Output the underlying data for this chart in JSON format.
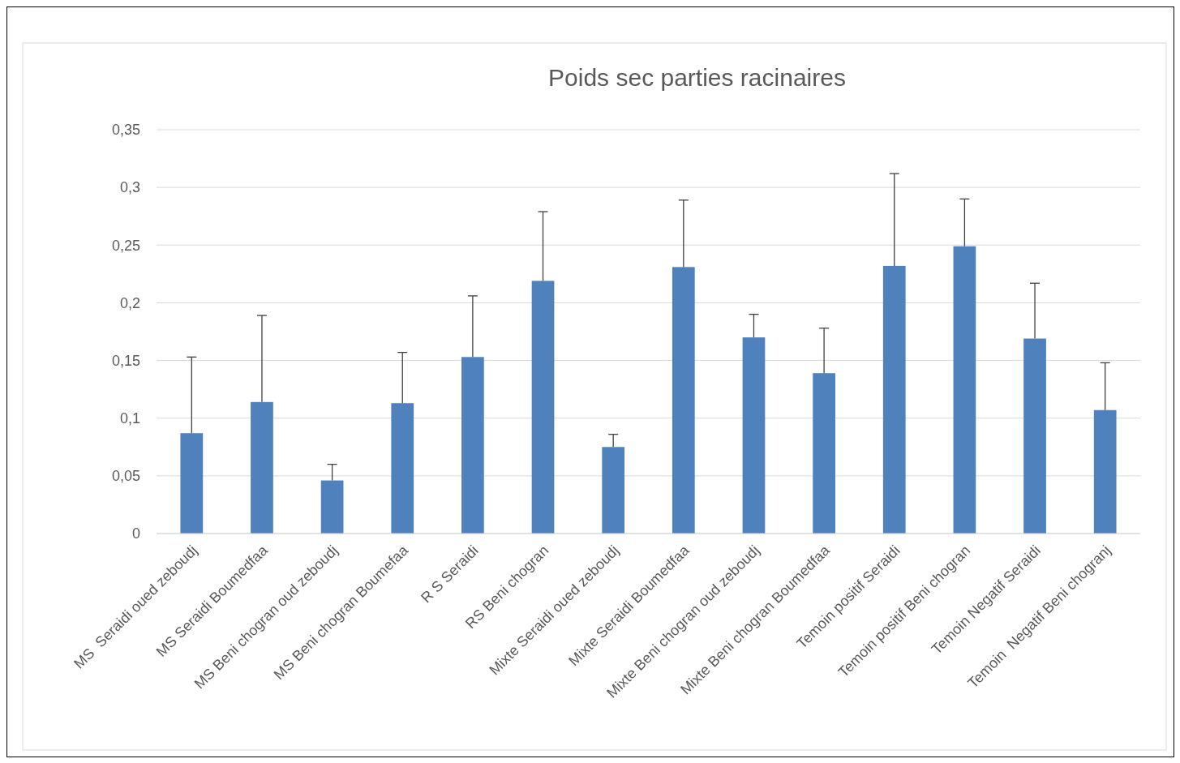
{
  "chart_data": {
    "type": "bar",
    "title": "Poids sec parties racinaires",
    "categories": [
      "MS  Seraidi oued zeboudj",
      "MS Seraidi Boumedfaa",
      "MS Beni chogran oud zeboudj",
      "MS Beni chogran Boumefaa",
      "R S Seraidi",
      "RS Beni chogran",
      "Mixte Seraidi oued zeboudj",
      "Mixte Seraidi Boumedfaa",
      "Mixte Beni chogran oud zeboudj",
      "Mixte Beni chogran Boumedfaa",
      "Temoin positif Seraidi",
      "Temoin positif Beni chogran",
      "Temoin Negatif Seraidi",
      "Temoin  Negatif Beni chogranj"
    ],
    "values": [
      0.087,
      0.114,
      0.046,
      0.113,
      0.153,
      0.219,
      0.075,
      0.231,
      0.17,
      0.139,
      0.232,
      0.249,
      0.169,
      0.107
    ],
    "errors": [
      [
        0.087,
        0.153
      ],
      [
        0.114,
        0.189
      ],
      [
        0.046,
        0.06
      ],
      [
        0.113,
        0.157
      ],
      [
        0.153,
        0.206
      ],
      [
        0.219,
        0.279
      ],
      [
        0.075,
        0.086
      ],
      [
        0.231,
        0.289
      ],
      [
        0.17,
        0.19
      ],
      [
        0.139,
        0.178
      ],
      [
        0.232,
        0.312
      ],
      [
        0.249,
        0.29
      ],
      [
        0.169,
        0.217
      ],
      [
        0.107,
        0.148
      ]
    ],
    "color": "#4f81bd",
    "ylim": [
      0,
      0.35
    ],
    "yticks": [
      {
        "value": 0,
        "label": "0"
      },
      {
        "value": 0.05,
        "label": "0,05"
      },
      {
        "value": 0.1,
        "label": "0,1"
      },
      {
        "value": 0.15,
        "label": "0,15"
      },
      {
        "value": 0.2,
        "label": "0,2"
      },
      {
        "value": 0.25,
        "label": "0,25"
      },
      {
        "value": 0.3,
        "label": "0,3"
      },
      {
        "value": 0.35,
        "label": "0,35"
      }
    ],
    "grid": "y"
  }
}
